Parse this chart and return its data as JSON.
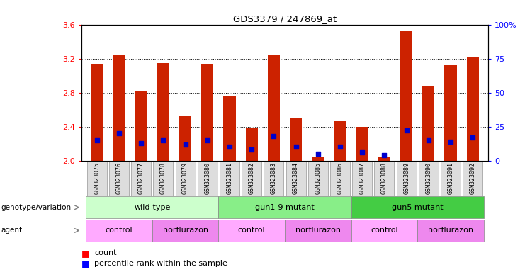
{
  "title": "GDS3379 / 247869_at",
  "samples": [
    "GSM323075",
    "GSM323076",
    "GSM323077",
    "GSM323078",
    "GSM323079",
    "GSM323080",
    "GSM323081",
    "GSM323082",
    "GSM323083",
    "GSM323084",
    "GSM323085",
    "GSM323086",
    "GSM323087",
    "GSM323088",
    "GSM323089",
    "GSM323090",
    "GSM323091",
    "GSM323092"
  ],
  "counts": [
    3.13,
    3.25,
    2.82,
    3.15,
    2.52,
    3.14,
    2.76,
    2.38,
    3.25,
    2.5,
    2.05,
    2.46,
    2.4,
    2.05,
    3.52,
    2.88,
    3.12,
    3.22
  ],
  "percentile_ranks": [
    15,
    20,
    13,
    15,
    12,
    15,
    10,
    8,
    18,
    10,
    5,
    10,
    6,
    4,
    22,
    15,
    14,
    17
  ],
  "y_min": 2.0,
  "y_max": 3.6,
  "y_ticks": [
    2.0,
    2.4,
    2.8,
    3.2,
    3.6
  ],
  "right_y_ticks": [
    0,
    25,
    50,
    75,
    100
  ],
  "right_y_tick_labels": [
    "0",
    "25",
    "50",
    "75",
    "100%"
  ],
  "genotype_groups": [
    {
      "label": "wild-type",
      "start": 0,
      "end": 5,
      "color": "#ccffcc"
    },
    {
      "label": "gun1-9 mutant",
      "start": 6,
      "end": 11,
      "color": "#88ee88"
    },
    {
      "label": "gun5 mutant",
      "start": 12,
      "end": 17,
      "color": "#44cc44"
    }
  ],
  "agent_groups": [
    {
      "label": "control",
      "start": 0,
      "end": 2,
      "color": "#ffaaff"
    },
    {
      "label": "norflurazon",
      "start": 3,
      "end": 5,
      "color": "#ee88ee"
    },
    {
      "label": "control",
      "start": 6,
      "end": 8,
      "color": "#ffaaff"
    },
    {
      "label": "norflurazon",
      "start": 9,
      "end": 11,
      "color": "#ee88ee"
    },
    {
      "label": "control",
      "start": 12,
      "end": 14,
      "color": "#ffaaff"
    },
    {
      "label": "norflurazon",
      "start": 15,
      "end": 17,
      "color": "#ee88ee"
    }
  ],
  "bar_color": "#cc2200",
  "marker_color": "#0000cc",
  "bar_width": 0.55,
  "tick_bg_color": "#dddddd"
}
